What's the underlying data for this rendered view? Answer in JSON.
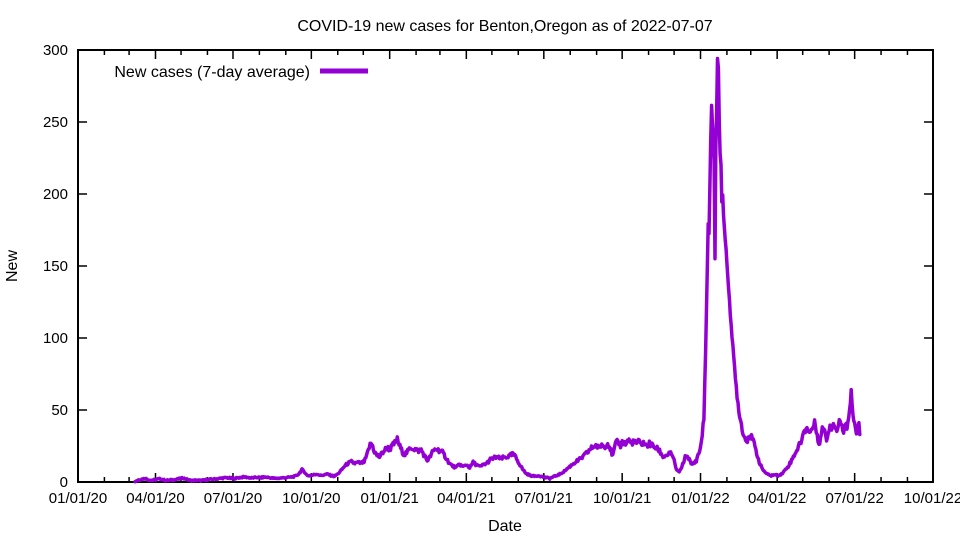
{
  "title": "COVID-19 new cases for Benton,Oregon as of 2022-07-07",
  "location": "Benton,Oregon",
  "as_of_date": "2022-07-07",
  "chart_data": {
    "type": "line",
    "title": "COVID-19 new cases for Benton,Oregon as of 2022-07-07",
    "xlabel": "Date",
    "ylabel": "New",
    "legend": "New cases (7-day average)",
    "legend_position": "top-left-inside",
    "grid": false,
    "line_color": "#9400D3",
    "border_color": "#000000",
    "background": "#ffffff",
    "ylim": [
      0,
      300
    ],
    "y_ticks": [
      0,
      50,
      100,
      150,
      200,
      250,
      300
    ],
    "x_range": [
      "2020-01-01",
      "2022-10-01"
    ],
    "x_major_ticks": [
      "2020-01-01",
      "2020-04-01",
      "2020-07-01",
      "2020-10-01",
      "2021-01-01",
      "2021-04-01",
      "2021-07-01",
      "2021-10-01",
      "2022-01-01",
      "2022-04-01",
      "2022-07-01",
      "2022-10-01"
    ],
    "x_tick_labels": [
      "01/01/20",
      "04/01/20",
      "07/01/20",
      "10/01/20",
      "01/01/21",
      "04/01/21",
      "07/01/21",
      "10/01/21",
      "01/01/22",
      "04/01/22",
      "07/01/22",
      "10/01/22"
    ],
    "x_minor_tick_interval": "month",
    "series": [
      {
        "name": "New cases (7-day average)",
        "points": [
          [
            "2020-03-08",
            0.5
          ],
          [
            "2020-03-12",
            1.5
          ],
          [
            "2020-03-16",
            2
          ],
          [
            "2020-03-20",
            2.5
          ],
          [
            "2020-03-24",
            1.5
          ],
          [
            "2020-03-28",
            1.2
          ],
          [
            "2020-04-01",
            1.5
          ],
          [
            "2020-04-05",
            2.2
          ],
          [
            "2020-04-09",
            1.8
          ],
          [
            "2020-04-13",
            1
          ],
          [
            "2020-04-17",
            1.2
          ],
          [
            "2020-04-21",
            1.5
          ],
          [
            "2020-04-25",
            1.8
          ],
          [
            "2020-04-29",
            2.2
          ],
          [
            "2020-05-03",
            2.8
          ],
          [
            "2020-05-07",
            2
          ],
          [
            "2020-05-11",
            1.2
          ],
          [
            "2020-05-15",
            1
          ],
          [
            "2020-05-19",
            1.2
          ],
          [
            "2020-05-23",
            1
          ],
          [
            "2020-05-27",
            1.2
          ],
          [
            "2020-05-31",
            1.5
          ],
          [
            "2020-06-04",
            1.8
          ],
          [
            "2020-06-08",
            2
          ],
          [
            "2020-06-12",
            2.2
          ],
          [
            "2020-06-16",
            2.5
          ],
          [
            "2020-06-20",
            2.8
          ],
          [
            "2020-06-24",
            3
          ],
          [
            "2020-06-28",
            2.6
          ],
          [
            "2020-07-02",
            2.4
          ],
          [
            "2020-07-06",
            2.8
          ],
          [
            "2020-07-10",
            3.2
          ],
          [
            "2020-07-14",
            3.5
          ],
          [
            "2020-07-18",
            3.2
          ],
          [
            "2020-07-22",
            2.8
          ],
          [
            "2020-07-26",
            3
          ],
          [
            "2020-07-30",
            3.2
          ],
          [
            "2020-08-03",
            3
          ],
          [
            "2020-08-07",
            3.4
          ],
          [
            "2020-08-11",
            3.2
          ],
          [
            "2020-08-15",
            2.8
          ],
          [
            "2020-08-19",
            2.5
          ],
          [
            "2020-08-23",
            2.6
          ],
          [
            "2020-08-27",
            2.8
          ],
          [
            "2020-08-31",
            3
          ],
          [
            "2020-09-04",
            3.2
          ],
          [
            "2020-09-08",
            3.5
          ],
          [
            "2020-09-12",
            4
          ],
          [
            "2020-09-16",
            5.5
          ],
          [
            "2020-09-20",
            8.5
          ],
          [
            "2020-09-23",
            7
          ],
          [
            "2020-09-26",
            4.5
          ],
          [
            "2020-09-30",
            4.5
          ],
          [
            "2020-10-04",
            5
          ],
          [
            "2020-10-08",
            5.5
          ],
          [
            "2020-10-12",
            4.5
          ],
          [
            "2020-10-16",
            5
          ],
          [
            "2020-10-20",
            5.5
          ],
          [
            "2020-10-24",
            4.5
          ],
          [
            "2020-10-28",
            4
          ],
          [
            "2020-11-01",
            5.5
          ],
          [
            "2020-11-05",
            8
          ],
          [
            "2020-11-09",
            11
          ],
          [
            "2020-11-13",
            13
          ],
          [
            "2020-11-17",
            14
          ],
          [
            "2020-11-21",
            13
          ],
          [
            "2020-11-25",
            13.5
          ],
          [
            "2020-11-28",
            13
          ],
          [
            "2020-12-02",
            14
          ],
          [
            "2020-12-05",
            18
          ],
          [
            "2020-12-08",
            24
          ],
          [
            "2020-12-10",
            27
          ],
          [
            "2020-12-12",
            25
          ],
          [
            "2020-12-14",
            21
          ],
          [
            "2020-12-17",
            18.5
          ],
          [
            "2020-12-20",
            17.5
          ],
          [
            "2020-12-23",
            20
          ],
          [
            "2020-12-26",
            22
          ],
          [
            "2020-12-29",
            24
          ],
          [
            "2021-01-01",
            22.5
          ],
          [
            "2021-01-04",
            25
          ],
          [
            "2021-01-07",
            27
          ],
          [
            "2021-01-10",
            29.5
          ],
          [
            "2021-01-12",
            26
          ],
          [
            "2021-01-15",
            22
          ],
          [
            "2021-01-18",
            19
          ],
          [
            "2021-01-22",
            21
          ],
          [
            "2021-01-26",
            24
          ],
          [
            "2021-01-30",
            23
          ],
          [
            "2021-02-03",
            21.5
          ],
          [
            "2021-02-07",
            22.5
          ],
          [
            "2021-02-11",
            18
          ],
          [
            "2021-02-14",
            15
          ],
          [
            "2021-02-17",
            17
          ],
          [
            "2021-02-20",
            20.5
          ],
          [
            "2021-02-24",
            23
          ],
          [
            "2021-02-28",
            22
          ],
          [
            "2021-03-04",
            20.5
          ],
          [
            "2021-03-08",
            17
          ],
          [
            "2021-03-12",
            13
          ],
          [
            "2021-03-16",
            11
          ],
          [
            "2021-03-20",
            10
          ],
          [
            "2021-03-24",
            12.5
          ],
          [
            "2021-03-28",
            10.5
          ],
          [
            "2021-04-01",
            12
          ],
          [
            "2021-04-05",
            10
          ],
          [
            "2021-04-09",
            13.5
          ],
          [
            "2021-04-13",
            12
          ],
          [
            "2021-04-17",
            10.5
          ],
          [
            "2021-04-21",
            12
          ],
          [
            "2021-04-25",
            13
          ],
          [
            "2021-04-29",
            15.5
          ],
          [
            "2021-05-03",
            16.5
          ],
          [
            "2021-05-07",
            17.5
          ],
          [
            "2021-05-11",
            16
          ],
          [
            "2021-05-15",
            17
          ],
          [
            "2021-05-19",
            17.5
          ],
          [
            "2021-05-22",
            18
          ],
          [
            "2021-05-26",
            19.5
          ],
          [
            "2021-05-29",
            17
          ],
          [
            "2021-06-02",
            13
          ],
          [
            "2021-06-06",
            9
          ],
          [
            "2021-06-10",
            6
          ],
          [
            "2021-06-15",
            4.5
          ],
          [
            "2021-06-20",
            4
          ],
          [
            "2021-06-25",
            4.5
          ],
          [
            "2021-06-30",
            3.5
          ],
          [
            "2021-07-04",
            3
          ],
          [
            "2021-07-08",
            2.5
          ],
          [
            "2021-07-12",
            3.5
          ],
          [
            "2021-07-16",
            4.5
          ],
          [
            "2021-07-20",
            5.5
          ],
          [
            "2021-07-24",
            7
          ],
          [
            "2021-07-28",
            9
          ],
          [
            "2021-08-01",
            11
          ],
          [
            "2021-08-05",
            13
          ],
          [
            "2021-08-09",
            14.5
          ],
          [
            "2021-08-13",
            16
          ],
          [
            "2021-08-17",
            18
          ],
          [
            "2021-08-21",
            20.5
          ],
          [
            "2021-08-25",
            23
          ],
          [
            "2021-08-29",
            25
          ],
          [
            "2021-09-01",
            25.5
          ],
          [
            "2021-09-04",
            23
          ],
          [
            "2021-09-07",
            26.5
          ],
          [
            "2021-09-10",
            24
          ],
          [
            "2021-09-13",
            27.5
          ],
          [
            "2021-09-16",
            25
          ],
          [
            "2021-09-20",
            18
          ],
          [
            "2021-09-23",
            26
          ],
          [
            "2021-09-26",
            28
          ],
          [
            "2021-09-29",
            25.5
          ],
          [
            "2021-10-02",
            28.5
          ],
          [
            "2021-10-05",
            26
          ],
          [
            "2021-10-08",
            29.5
          ],
          [
            "2021-10-11",
            27
          ],
          [
            "2021-10-14",
            28
          ],
          [
            "2021-10-17",
            26.5
          ],
          [
            "2021-10-20",
            28
          ],
          [
            "2021-10-23",
            26
          ],
          [
            "2021-10-26",
            27.5
          ],
          [
            "2021-10-29",
            25
          ],
          [
            "2021-11-02",
            26.5
          ],
          [
            "2021-11-06",
            25
          ],
          [
            "2021-11-10",
            23.5
          ],
          [
            "2021-11-14",
            21.5
          ],
          [
            "2021-11-18",
            17.5
          ],
          [
            "2021-11-22",
            18.5
          ],
          [
            "2021-11-26",
            20
          ],
          [
            "2021-11-30",
            17.5
          ],
          [
            "2021-12-03",
            9.5
          ],
          [
            "2021-12-06",
            7
          ],
          [
            "2021-12-09",
            8.5
          ],
          [
            "2021-12-12",
            14
          ],
          [
            "2021-12-15",
            18.5
          ],
          [
            "2021-12-18",
            17
          ],
          [
            "2021-12-21",
            12
          ],
          [
            "2021-12-24",
            13
          ],
          [
            "2021-12-27",
            15
          ],
          [
            "2021-12-30",
            20
          ],
          [
            "2022-01-01",
            24
          ],
          [
            "2022-01-03",
            33
          ],
          [
            "2022-01-05",
            45
          ],
          [
            "2022-01-07",
            90
          ],
          [
            "2022-01-09",
            150
          ],
          [
            "2022-01-10",
            178
          ],
          [
            "2022-01-11",
            172
          ],
          [
            "2022-01-12",
            205
          ],
          [
            "2022-01-13",
            235
          ],
          [
            "2022-01-14",
            260
          ],
          [
            "2022-01-15",
            250
          ],
          [
            "2022-01-16",
            238
          ],
          [
            "2022-01-17",
            224
          ],
          [
            "2022-01-18",
            156
          ],
          [
            "2022-01-19",
            232
          ],
          [
            "2022-01-20",
            260
          ],
          [
            "2022-01-21",
            293
          ],
          [
            "2022-01-22",
            288
          ],
          [
            "2022-01-23",
            250
          ],
          [
            "2022-01-24",
            226
          ],
          [
            "2022-01-25",
            222
          ],
          [
            "2022-01-26",
            196
          ],
          [
            "2022-01-27",
            199
          ],
          [
            "2022-01-28",
            185
          ],
          [
            "2022-01-30",
            170
          ],
          [
            "2022-02-01",
            150
          ],
          [
            "2022-02-03",
            136
          ],
          [
            "2022-02-05",
            118
          ],
          [
            "2022-02-07",
            100
          ],
          [
            "2022-02-09",
            86
          ],
          [
            "2022-02-11",
            72
          ],
          [
            "2022-02-13",
            60
          ],
          [
            "2022-02-15",
            50
          ],
          [
            "2022-02-17",
            43
          ],
          [
            "2022-02-19",
            37
          ],
          [
            "2022-02-21",
            32
          ],
          [
            "2022-02-24",
            28
          ],
          [
            "2022-02-27",
            33
          ],
          [
            "2022-03-03",
            30
          ],
          [
            "2022-03-06",
            24
          ],
          [
            "2022-03-09",
            18
          ],
          [
            "2022-03-12",
            12
          ],
          [
            "2022-03-16",
            8
          ],
          [
            "2022-03-20",
            5.5
          ],
          [
            "2022-03-25",
            4.5
          ],
          [
            "2022-03-29",
            5
          ],
          [
            "2022-04-02",
            4.5
          ],
          [
            "2022-04-06",
            5.5
          ],
          [
            "2022-04-10",
            8
          ],
          [
            "2022-04-14",
            11
          ],
          [
            "2022-04-18",
            15
          ],
          [
            "2022-04-22",
            20
          ],
          [
            "2022-04-26",
            24
          ],
          [
            "2022-04-30",
            30
          ],
          [
            "2022-05-03",
            35
          ],
          [
            "2022-05-06",
            38
          ],
          [
            "2022-05-09",
            34
          ],
          [
            "2022-05-12",
            37
          ],
          [
            "2022-05-15",
            41
          ],
          [
            "2022-05-17",
            36
          ],
          [
            "2022-05-19",
            30
          ],
          [
            "2022-05-21",
            26
          ],
          [
            "2022-05-23",
            34
          ],
          [
            "2022-05-25",
            39
          ],
          [
            "2022-05-27",
            35
          ],
          [
            "2022-05-29",
            30
          ],
          [
            "2022-05-31",
            34
          ],
          [
            "2022-06-02",
            40
          ],
          [
            "2022-06-04",
            37
          ],
          [
            "2022-06-06",
            42
          ],
          [
            "2022-06-08",
            38
          ],
          [
            "2022-06-10",
            35
          ],
          [
            "2022-06-12",
            40
          ],
          [
            "2022-06-14",
            43
          ],
          [
            "2022-06-16",
            39
          ],
          [
            "2022-06-18",
            36
          ],
          [
            "2022-06-20",
            41
          ],
          [
            "2022-06-22",
            38
          ],
          [
            "2022-06-24",
            45
          ],
          [
            "2022-06-26",
            55
          ],
          [
            "2022-06-27",
            62
          ],
          [
            "2022-06-28",
            52
          ],
          [
            "2022-06-30",
            42
          ],
          [
            "2022-07-02",
            37
          ],
          [
            "2022-07-04",
            34
          ],
          [
            "2022-07-06",
            40
          ],
          [
            "2022-07-07",
            33
          ]
        ]
      }
    ]
  }
}
